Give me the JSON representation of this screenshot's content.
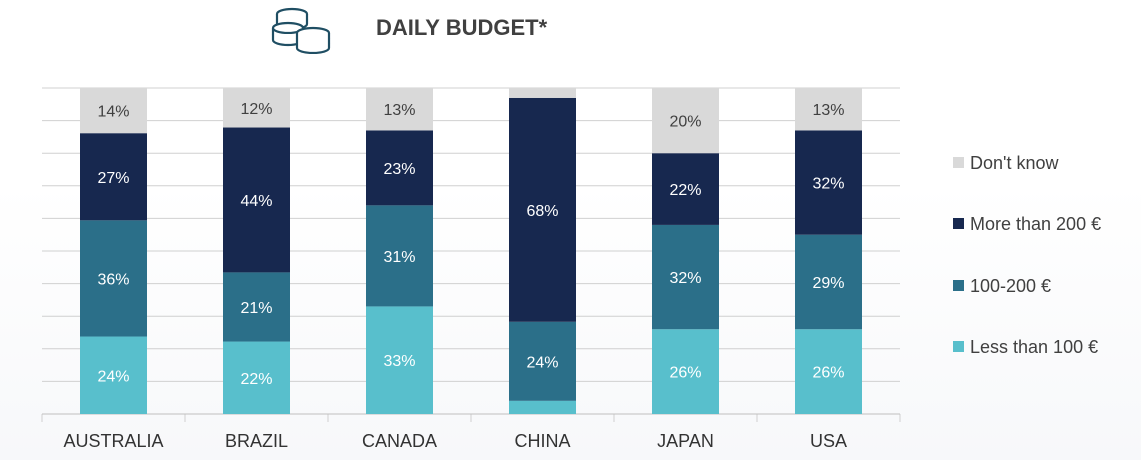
{
  "title": "DAILY BUDGET*",
  "icons": {
    "header": "coins-icon"
  },
  "colors": {
    "dont_know": "#d9d9d9",
    "more_than_200": "#17284f",
    "between_100_200": "#2b6f89",
    "less_than_100": "#58bfcc",
    "grid": "#d0d0d0",
    "axis_text": "#333333",
    "title_text": "#404040"
  },
  "chart_data": {
    "type": "bar",
    "stacked": true,
    "percent_stacked": true,
    "categories": [
      "AUSTRALIA",
      "BRAZIL",
      "CANADA",
      "CHINA",
      "JAPAN",
      "USA"
    ],
    "series": [
      {
        "name": "Less than 100 €",
        "values": [
          24,
          22,
          33,
          4,
          26,
          26
        ],
        "labels": [
          "24%",
          "22%",
          "33%",
          "",
          "26%",
          "26%"
        ]
      },
      {
        "name": "100-200 €",
        "values": [
          36,
          21,
          31,
          24,
          32,
          29
        ],
        "labels": [
          "36%",
          "21%",
          "31%",
          "24%",
          "32%",
          "29%"
        ]
      },
      {
        "name": "More than 200 €",
        "values": [
          27,
          44,
          23,
          68,
          22,
          32
        ],
        "labels": [
          "27%",
          "44%",
          "23%",
          "68%",
          "22%",
          "32%"
        ]
      },
      {
        "name": "Don't know",
        "values": [
          14,
          12,
          13,
          3,
          20,
          13
        ],
        "labels": [
          "14%",
          "12%",
          "13%",
          "",
          "20%",
          "13%"
        ]
      }
    ],
    "legend": {
      "position": "right",
      "order": [
        "Don't know",
        "More than 200 €",
        "100-200 €",
        "Less than 100 €"
      ]
    },
    "grid": true,
    "xlabel": "",
    "ylabel": ""
  }
}
